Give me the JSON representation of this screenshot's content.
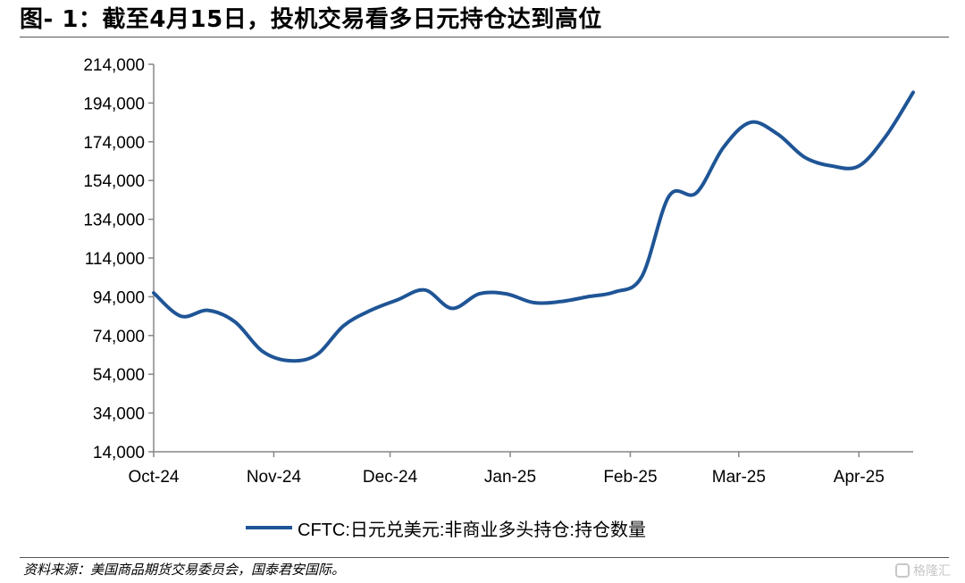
{
  "figure": {
    "title": "图- 1：截至4月15日，投机交易看多日元持仓达到高位",
    "source": "资料来源：美国商品期货交易委员会，国泰君安国际。",
    "watermark": "格隆汇"
  },
  "colors": {
    "series": "#1f5596",
    "axis": "#868686"
  },
  "chart_data": {
    "type": "line",
    "title": "",
    "xlabel": "",
    "ylabel": "",
    "ylim": [
      14000,
      214000
    ],
    "y_ticks": [
      14000,
      34000,
      54000,
      74000,
      94000,
      114000,
      134000,
      154000,
      174000,
      194000,
      214000
    ],
    "y_tick_labels": [
      "14,000",
      "34,000",
      "54,000",
      "74,000",
      "94,000",
      "114,000",
      "134,000",
      "154,000",
      "174,000",
      "194,000",
      "214,000"
    ],
    "x_tick_labels": [
      "Oct-24",
      "Nov-24",
      "Dec-24",
      "Jan-25",
      "Feb-25",
      "Mar-25",
      "Apr-25"
    ],
    "x_tick_dates": [
      "2024-10-01",
      "2024-11-01",
      "2024-12-01",
      "2025-01-01",
      "2025-02-01",
      "2025-03-01",
      "2025-04-01"
    ],
    "legend_position": "bottom",
    "grid": false,
    "series": [
      {
        "name": "CFTC:日元兑美元:非商业多头持仓:持仓数量",
        "x": [
          "2024-10-01",
          "2024-10-08",
          "2024-10-15",
          "2024-10-22",
          "2024-10-29",
          "2024-11-05",
          "2024-11-12",
          "2024-11-19",
          "2024-11-26",
          "2024-12-03",
          "2024-12-10",
          "2024-12-17",
          "2024-12-24",
          "2024-12-31",
          "2025-01-07",
          "2025-01-14",
          "2025-01-21",
          "2025-01-28",
          "2025-02-04",
          "2025-02-11",
          "2025-02-18",
          "2025-02-25",
          "2025-03-04",
          "2025-03-11",
          "2025-03-18",
          "2025-03-25",
          "2025-04-01",
          "2025-04-08",
          "2025-04-15"
        ],
        "y": [
          96000,
          84000,
          87000,
          81000,
          66000,
          61000,
          64000,
          79000,
          87000,
          92500,
          97500,
          88000,
          95500,
          95500,
          91000,
          91500,
          94000,
          96500,
          104500,
          146000,
          147500,
          171000,
          184000,
          178000,
          166000,
          161500,
          161500,
          177000,
          199500
        ]
      }
    ]
  }
}
